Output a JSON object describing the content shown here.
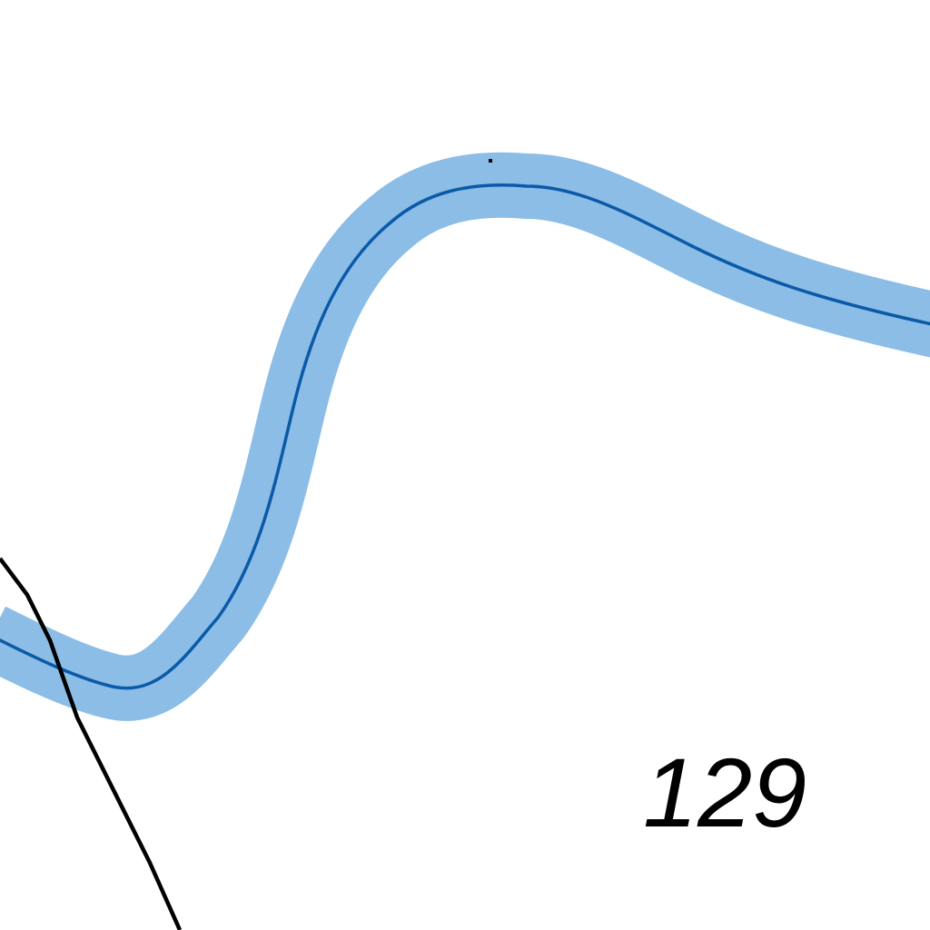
{
  "map": {
    "labels": {
      "parcel_number": "129"
    },
    "colors": {
      "background": "#ffffff",
      "river_buffer": "#8bbde6",
      "river_centerline": "#0a5aa8",
      "boundary_line": "#000000",
      "label_text": "#000000"
    },
    "features": {
      "river": "river",
      "boundary": "boundary-line"
    }
  }
}
